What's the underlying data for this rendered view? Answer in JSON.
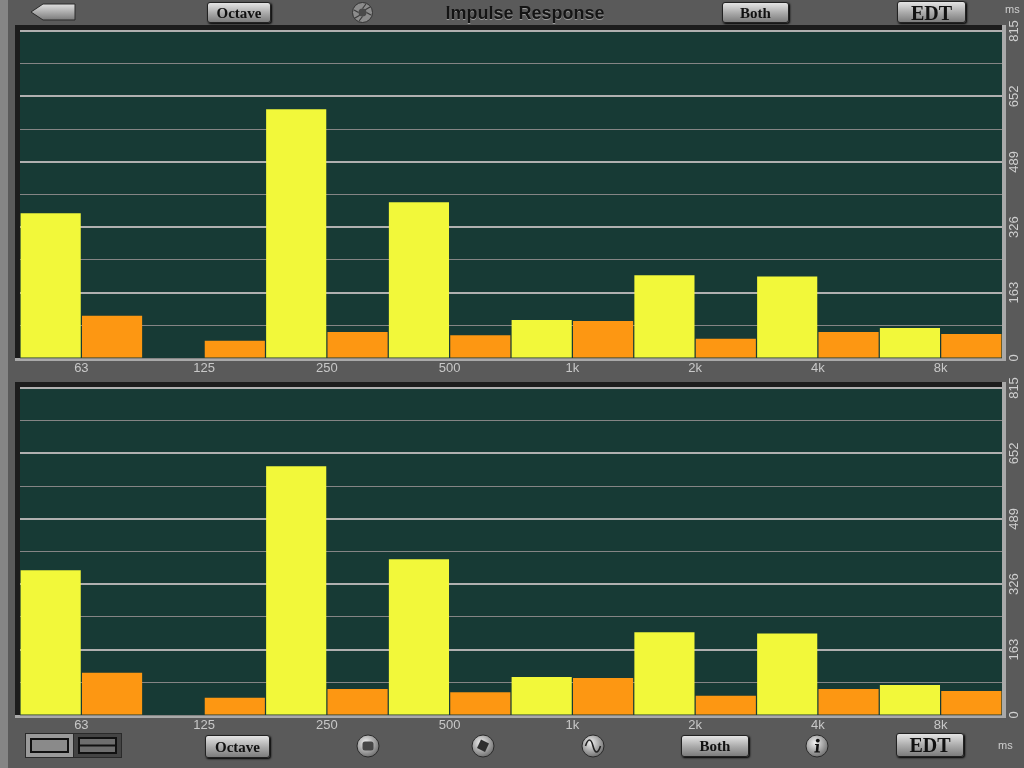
{
  "chart_data": [
    {
      "type": "bar",
      "title": "Impulse Response",
      "ylabel": "ms",
      "annotations": [
        "Octave",
        "Both",
        "EDT"
      ],
      "categories": [
        "63",
        "125",
        "250",
        "500",
        "1k",
        "2k",
        "4k",
        "8k"
      ],
      "series": [
        {
          "color": "#f2f83a",
          "values": [
            361,
            null,
            620,
            388,
            95,
            206,
            203,
            75
          ]
        },
        {
          "color": "#fd9712",
          "values": [
            105,
            43,
            65,
            57,
            92,
            48,
            65,
            60
          ]
        }
      ],
      "ylim": [
        0,
        815
      ],
      "yticks": [
        0,
        {
          "value": 81.5,
          "label": null
        },
        163,
        {
          "value": 244.5,
          "label": null
        },
        326,
        {
          "value": 407.5,
          "label": null
        },
        489,
        {
          "value": 570.5,
          "label": null
        },
        652,
        {
          "value": 733.5,
          "label": null
        },
        815
      ],
      "grid": "y"
    },
    {
      "type": "bar",
      "ylabel": "ms",
      "annotations": [
        "Octave",
        "Both",
        "EDT"
      ],
      "categories": [
        "63",
        "125",
        "250",
        "500",
        "1k",
        "2k",
        "4k",
        "8k"
      ],
      "series": [
        {
          "color": "#f2f83a",
          "values": [
            361,
            null,
            620,
            388,
            95,
            206,
            203,
            75
          ]
        },
        {
          "color": "#fd9712",
          "values": [
            105,
            43,
            65,
            57,
            92,
            48,
            65,
            60
          ]
        }
      ],
      "ylim": [
        0,
        815
      ],
      "yticks": [
        0,
        {
          "value": 81.5,
          "label": null
        },
        163,
        {
          "value": 244.5,
          "label": null
        },
        326,
        {
          "value": 407.5,
          "label": null
        },
        489,
        {
          "value": 570.5,
          "label": null
        },
        652,
        {
          "value": 733.5,
          "label": null
        },
        815
      ],
      "grid": "y"
    }
  ]
}
